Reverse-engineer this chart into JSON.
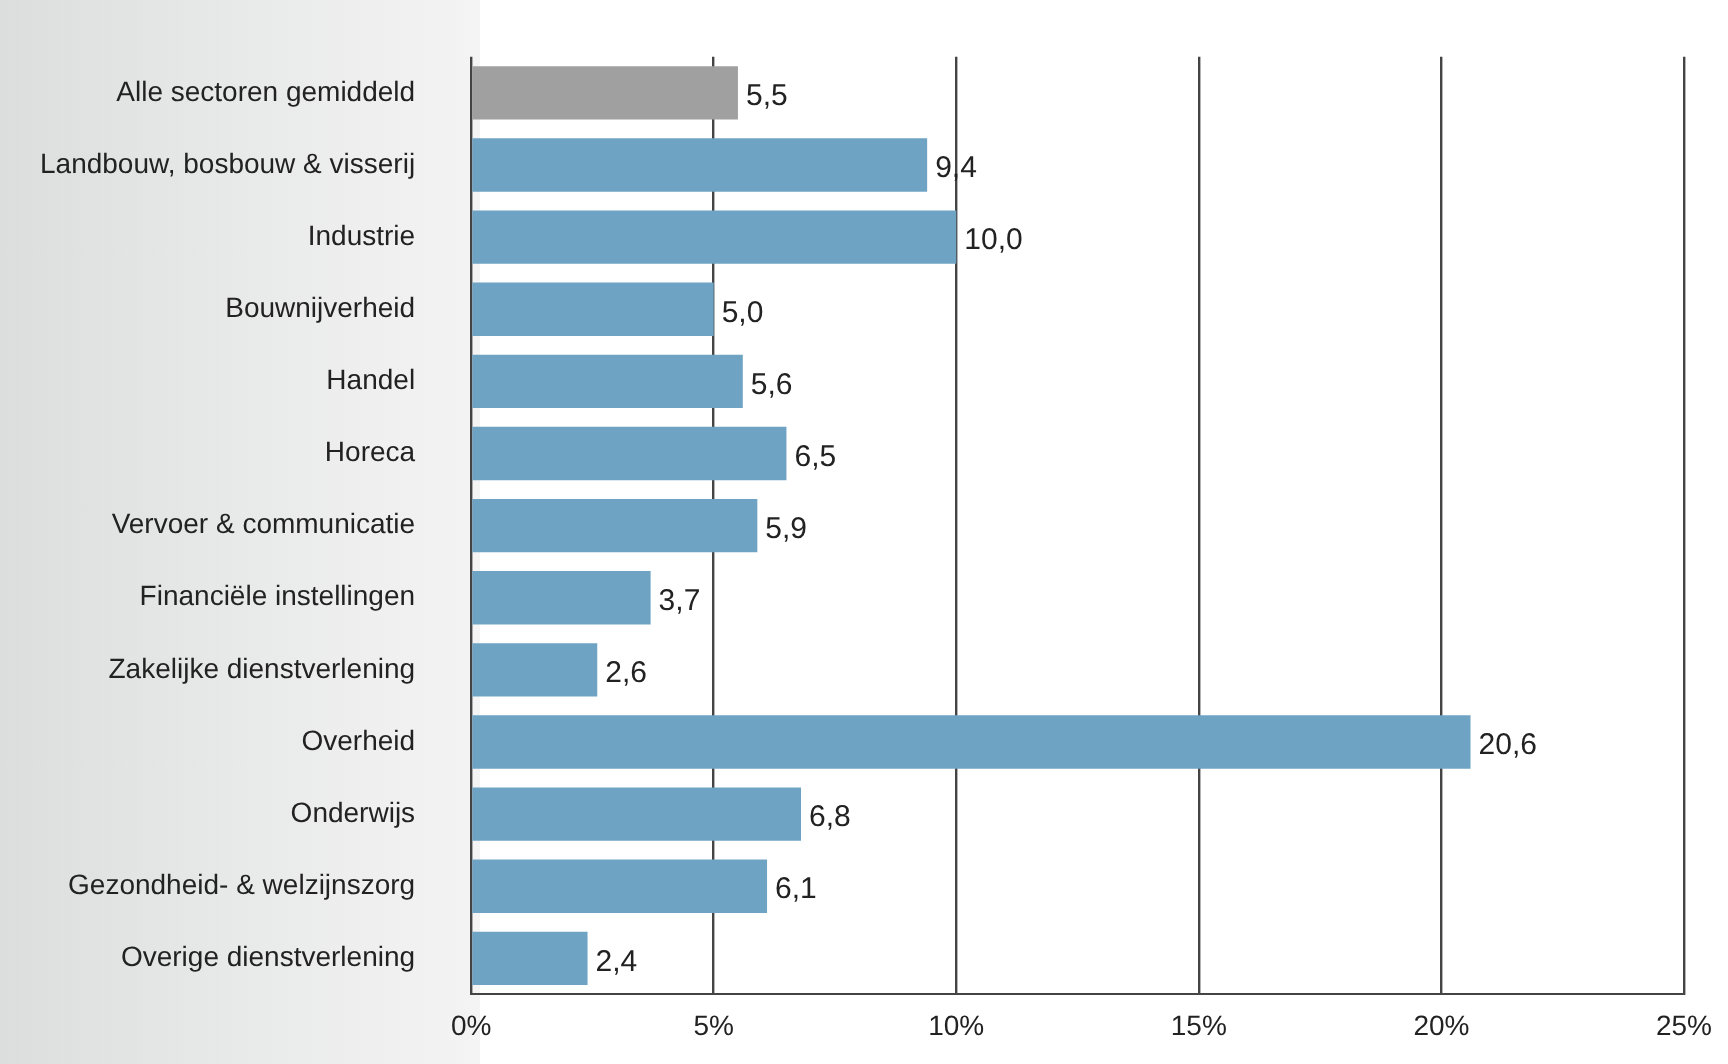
{
  "chart_data": {
    "type": "bar",
    "orientation": "horizontal",
    "categories": [
      "Alle sectoren gemiddeld",
      "Landbouw, bosbouw & visserij",
      "Industrie",
      "Bouwnijverheid",
      "Handel",
      "Horeca",
      "Vervoer & communicatie",
      "Financiële instellingen",
      "Zakelijke dienstverlening",
      "Overheid",
      "Onderwijs",
      "Gezondheid- & welzijnszorg",
      "Overige dienstverlening"
    ],
    "values": [
      5.5,
      9.4,
      10.0,
      5.0,
      5.6,
      6.5,
      5.9,
      3.7,
      2.6,
      20.6,
      6.8,
      6.1,
      2.4
    ],
    "colors": [
      "#a0a0a0",
      "#6fa3c4",
      "#6fa3c4",
      "#6fa3c4",
      "#6fa3c4",
      "#6fa3c4",
      "#6fa3c4",
      "#6fa3c4",
      "#6fa3c4",
      "#6fa3c4",
      "#6fa3c4",
      "#6fa3c4",
      "#6fa3c4"
    ],
    "value_labels": [
      "5,5",
      "9,4",
      "10,0",
      "5,0",
      "5,6",
      "6,5",
      "5,9",
      "3,7",
      "2,6",
      "20,6",
      "6,8",
      "6,1",
      "2,4"
    ],
    "xlim": [
      0,
      25
    ],
    "xticks": [
      {
        "value": 0,
        "label": "0%"
      },
      {
        "value": 5,
        "label": "5%"
      },
      {
        "value": 10,
        "label": "10%"
      },
      {
        "value": 15,
        "label": "15%"
      },
      {
        "value": 20,
        "label": "20%"
      },
      {
        "value": 25,
        "label": "25%"
      }
    ],
    "grid": "x",
    "legend": false
  }
}
